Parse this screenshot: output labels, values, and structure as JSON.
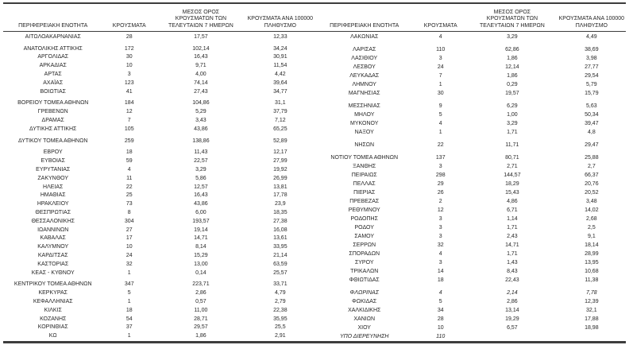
{
  "header": {
    "col_region": "ΠΕΡΙΦΕΡΕΙΑΚΗ ΕΝΟΤΗΤΑ",
    "col_cases": "ΚΡΟΥΣΜΑΤΑ",
    "col_avg_lines": [
      "ΜΕΣΟΣ ΟΡΟΣ",
      "ΚΡΟΥΣΜΑΤΩΝ ΤΩΝ",
      "ΤΕΛΕΥΤΑΙΩΝ 7 ΗΜΕΡΩΝ"
    ],
    "col_per100k_lines": [
      "ΚΡΟΥΣΜΑΤΑ ΑΝΑ 100000",
      "ΠΛΗΘΥΣΜΟ"
    ]
  },
  "left_table": {
    "groups": [
      {
        "rows": [
          {
            "region": "ΑΙΤΩΛΟΑΚΑΡΝΑΝΙΑΣ",
            "cases": "28",
            "avg7": "17,57",
            "per100k": "12,33"
          }
        ]
      },
      {
        "rows": [
          {
            "region": "ΑΝΑΤΟΛΙΚΗΣ ΑΤΤΙΚΗΣ",
            "cases": "172",
            "avg7": "102,14",
            "per100k": "34,24"
          },
          {
            "region": "ΑΡΓΟΛΙΔΑΣ",
            "cases": "30",
            "avg7": "16,43",
            "per100k": "30,91"
          },
          {
            "region": "ΑΡΚΑΔΙΑΣ",
            "cases": "10",
            "avg7": "9,71",
            "per100k": "11,54"
          },
          {
            "region": "ΑΡΤΑΣ",
            "cases": "3",
            "avg7": "4,00",
            "per100k": "4,42"
          },
          {
            "region": "ΑΧΑΪΑΣ",
            "cases": "123",
            "avg7": "74,14",
            "per100k": "39,64"
          },
          {
            "region": "ΒΟΙΩΤΙΑΣ",
            "cases": "41",
            "avg7": "27,43",
            "per100k": "34,77"
          }
        ]
      },
      {
        "rows": [
          {
            "region": "ΒΟΡΕΙΟΥ ΤΟΜΕΑ ΑΘΗΝΩΝ",
            "cases": "184",
            "avg7": "104,86",
            "per100k": "31,1"
          },
          {
            "region": "ΓΡΕΒΕΝΩΝ",
            "cases": "12",
            "avg7": "5,29",
            "per100k": "37,79"
          },
          {
            "region": "ΔΡΑΜΑΣ",
            "cases": "7",
            "avg7": "3,43",
            "per100k": "7,12"
          },
          {
            "region": "ΔΥΤΙΚΗΣ ΑΤΤΙΚΗΣ",
            "cases": "105",
            "avg7": "43,86",
            "per100k": "65,25"
          }
        ]
      },
      {
        "rows": [
          {
            "region": "ΔΥΤΙΚΟΥ ΤΟΜΕΑ ΑΘΗΝΩΝ",
            "cases": "259",
            "avg7": "138,86",
            "per100k": "52,89"
          }
        ]
      },
      {
        "rows": [
          {
            "region": "ΕΒΡΟΥ",
            "cases": "18",
            "avg7": "11,43",
            "per100k": "12,17"
          },
          {
            "region": "ΕΥΒΟΙΑΣ",
            "cases": "59",
            "avg7": "22,57",
            "per100k": "27,99"
          },
          {
            "region": "ΕΥΡΥΤΑΝΙΑΣ",
            "cases": "4",
            "avg7": "3,29",
            "per100k": "19,92"
          },
          {
            "region": "ΖΑΚΥΝΘΟΥ",
            "cases": "11",
            "avg7": "5,86",
            "per100k": "26,99"
          },
          {
            "region": "ΗΛΕΙΑΣ",
            "cases": "22",
            "avg7": "12,57",
            "per100k": "13,81"
          },
          {
            "region": "ΗΜΑΘΙΑΣ",
            "cases": "25",
            "avg7": "16,43",
            "per100k": "17,78"
          },
          {
            "region": "ΗΡΑΚΛΕΙΟΥ",
            "cases": "73",
            "avg7": "43,86",
            "per100k": "23,9"
          },
          {
            "region": "ΘΕΣΠΡΩΤΙΑΣ",
            "cases": "8",
            "avg7": "6,00",
            "per100k": "18,35"
          },
          {
            "region": "ΘΕΣΣΑΛΟΝΙΚΗΣ",
            "cases": "304",
            "avg7": "193,57",
            "per100k": "27,38"
          },
          {
            "region": "ΙΩΑΝΝΙΝΩΝ",
            "cases": "27",
            "avg7": "19,14",
            "per100k": "16,08"
          },
          {
            "region": "ΚΑΒΑΛΑΣ",
            "cases": "17",
            "avg7": "14,71",
            "per100k": "13,61"
          },
          {
            "region": "ΚΑΛΥΜΝΟΥ",
            "cases": "10",
            "avg7": "8,14",
            "per100k": "33,95"
          },
          {
            "region": "ΚΑΡΔΙΤΣΑΣ",
            "cases": "24",
            "avg7": "15,29",
            "per100k": "21,14"
          },
          {
            "region": "ΚΑΣΤΟΡΙΑΣ",
            "cases": "32",
            "avg7": "13,00",
            "per100k": "63,59"
          },
          {
            "region": "ΚΕΑΣ - ΚΥΘΝΟΥ",
            "cases": "1",
            "avg7": "0,14",
            "per100k": "25,57"
          }
        ]
      },
      {
        "rows": [
          {
            "region": "ΚΕΝΤΡΙΚΟΥ ΤΟΜΕΑ ΑΘΗΝΩΝ",
            "cases": "347",
            "avg7": "223,71",
            "per100k": "33,71"
          },
          {
            "region": "ΚΕΡΚΥΡΑΣ",
            "cases": "5",
            "avg7": "2,86",
            "per100k": "4,79"
          },
          {
            "region": "ΚΕΦΑΛΛΗΝΙΑΣ",
            "cases": "1",
            "avg7": "0,57",
            "per100k": "2,79"
          },
          {
            "region": "ΚΙΛΚΙΣ",
            "cases": "18",
            "avg7": "11,00",
            "per100k": "22,38"
          },
          {
            "region": "ΚΟΖΑΝΗΣ",
            "cases": "54",
            "avg7": "28,71",
            "per100k": "35,95"
          },
          {
            "region": "ΚΟΡΙΝΘΙΑΣ",
            "cases": "37",
            "avg7": "29,57",
            "per100k": "25,5"
          },
          {
            "region": "ΚΩ",
            "cases": "1",
            "avg7": "1,86",
            "per100k": "2,91"
          }
        ]
      }
    ]
  },
  "right_table": {
    "groups": [
      {
        "rows": [
          {
            "region": "ΛΑΚΩΝΙΑΣ",
            "cases": "4",
            "avg7": "3,29",
            "per100k": "4,49"
          }
        ]
      },
      {
        "rows": [
          {
            "region": "ΛΑΡΙΣΑΣ",
            "cases": "110",
            "avg7": "62,86",
            "per100k": "38,69"
          },
          {
            "region": "ΛΑΣΙΘΙΟΥ",
            "cases": "3",
            "avg7": "1,86",
            "per100k": "3,98"
          },
          {
            "region": "ΛΕΣΒΟΥ",
            "cases": "24",
            "avg7": "12,14",
            "per100k": "27,77"
          },
          {
            "region": "ΛΕΥΚΑΔΑΣ",
            "cases": "7",
            "avg7": "1,86",
            "per100k": "29,54"
          },
          {
            "region": "ΛΗΜΝΟΥ",
            "cases": "1",
            "avg7": "0,29",
            "per100k": "5,79"
          },
          {
            "region": "ΜΑΓΝΗΣΙΑΣ",
            "cases": "30",
            "avg7": "19,57",
            "per100k": "15,79"
          }
        ]
      },
      {
        "rows": [
          {
            "region": "ΜΕΣΣΗΝΙΑΣ",
            "cases": "9",
            "avg7": "6,29",
            "per100k": "5,63"
          },
          {
            "region": "ΜΗΛΟΥ",
            "cases": "5",
            "avg7": "1,00",
            "per100k": "50,34"
          },
          {
            "region": "ΜΥΚΟΝΟΥ",
            "cases": "4",
            "avg7": "3,29",
            "per100k": "39,47"
          },
          {
            "region": "ΝΑΞΟΥ",
            "cases": "1",
            "avg7": "1,71",
            "per100k": "4,8"
          }
        ]
      },
      {
        "rows": [
          {
            "region": "ΝΗΣΩΝ",
            "cases": "22",
            "avg7": "11,71",
            "per100k": "29,47"
          }
        ]
      },
      {
        "rows": [
          {
            "region": "ΝΟΤΙΟΥ ΤΟΜΕΑ ΑΘΗΝΩΝ",
            "cases": "137",
            "avg7": "80,71",
            "per100k": "25,88"
          },
          {
            "region": "ΞΑΝΘΗΣ",
            "cases": "3",
            "avg7": "2,71",
            "per100k": "2,7"
          },
          {
            "region": "ΠΕΙΡΑΙΩΣ",
            "cases": "298",
            "avg7": "144,57",
            "per100k": "66,37"
          },
          {
            "region": "ΠΕΛΛΑΣ",
            "cases": "29",
            "avg7": "18,29",
            "per100k": "20,76"
          },
          {
            "region": "ΠΙΕΡΙΑΣ",
            "cases": "26",
            "avg7": "15,43",
            "per100k": "20,52"
          },
          {
            "region": "ΠΡΕΒΕΖΑΣ",
            "cases": "2",
            "avg7": "4,86",
            "per100k": "3,48"
          },
          {
            "region": "ΡΕΘΥΜΝΟΥ",
            "cases": "12",
            "avg7": "6,71",
            "per100k": "14,02"
          },
          {
            "region": "ΡΟΔΟΠΗΣ",
            "cases": "3",
            "avg7": "1,14",
            "per100k": "2,68"
          },
          {
            "region": "ΡΟΔΟΥ",
            "cases": "3",
            "avg7": "1,71",
            "per100k": "2,5"
          },
          {
            "region": "ΣΑΜΟΥ",
            "cases": "3",
            "avg7": "2,43",
            "per100k": "9,1"
          },
          {
            "region": "ΣΕΡΡΩΝ",
            "cases": "32",
            "avg7": "14,71",
            "per100k": "18,14"
          },
          {
            "region": "ΣΠΟΡΑΔΩΝ",
            "cases": "4",
            "avg7": "1,71",
            "per100k": "28,99"
          },
          {
            "region": "ΣΥΡΟΥ",
            "cases": "3",
            "avg7": "1,43",
            "per100k": "13,95"
          },
          {
            "region": "ΤΡΙΚΑΛΩΝ",
            "cases": "14",
            "avg7": "8,43",
            "per100k": "10,68"
          },
          {
            "region": "ΦΘΙΩΤΙΔΑΣ",
            "cases": "18",
            "avg7": "22,43",
            "per100k": "11,38"
          }
        ]
      },
      {
        "rows": [
          {
            "region": "ΦΛΩΡΙΝΑΣ",
            "cases": "4",
            "avg7": "2,14",
            "per100k": "7,78",
            "italic": true
          },
          {
            "region": "ΦΩΚΙΔΑΣ",
            "cases": "5",
            "avg7": "2,86",
            "per100k": "12,39"
          },
          {
            "region": "ΧΑΛΚΙΔΙΚΗΣ",
            "cases": "34",
            "avg7": "13,14",
            "per100k": "32,1"
          },
          {
            "region": "ΧΑΝΙΩΝ",
            "cases": "28",
            "avg7": "19,29",
            "per100k": "17,88"
          },
          {
            "region": "ΧΙΟΥ",
            "cases": "10",
            "avg7": "6,57",
            "per100k": "18,98"
          },
          {
            "region": "ΥΠΟ ΔΙΕΡΕΥΝΗΣΗ",
            "cases": "110",
            "avg7": "",
            "per100k": "",
            "italic": true
          }
        ]
      }
    ]
  }
}
